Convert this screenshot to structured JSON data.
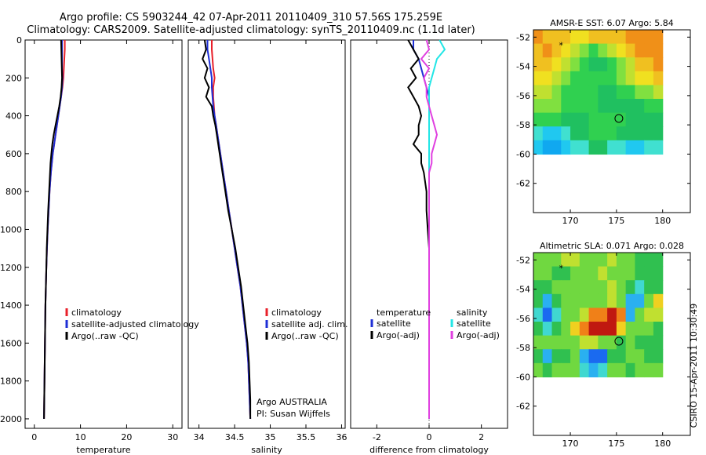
{
  "header": {
    "line1": "Argo profile: CS 5903244_42 07-Apr-2011 20110409_310 57.56S 175.259E",
    "line2": "Climatology: CARS2009. Satellite-adjusted climatology: synTS_20110409.nc (1.1d later)"
  },
  "footer": {
    "stamp": "CSIRO 15-Apr-2011 10:30:49"
  },
  "colors": {
    "red": "#e8202a",
    "blue": "#1f2fd6",
    "black": "#000000",
    "cyan": "#22e6e6",
    "magenta": "#e040e0"
  },
  "chart_data": [
    {
      "type": "line",
      "panel": "temperature",
      "xlabel": "temperature",
      "ylabel": "",
      "xlim": [
        -2,
        32
      ],
      "ylim": [
        2050,
        0
      ],
      "xticks": [
        0,
        10,
        20,
        30
      ],
      "yticks": [
        0,
        200,
        400,
        600,
        800,
        1000,
        1200,
        1400,
        1600,
        1800,
        2000
      ],
      "depth": [
        0,
        50,
        100,
        150,
        200,
        250,
        300,
        350,
        400,
        450,
        500,
        550,
        600,
        650,
        700,
        800,
        900,
        1000,
        1100,
        1200,
        1300,
        1400,
        1500,
        1600,
        1700,
        1800,
        1900,
        2000
      ],
      "series": [
        {
          "name": "climatology",
          "color": "red",
          "values": [
            6.6,
            6.6,
            6.5,
            6.4,
            6.3,
            6.1,
            5.8,
            5.5,
            5.2,
            4.9,
            4.6,
            4.3,
            4.0,
            3.8,
            3.6,
            3.3,
            3.1,
            2.9,
            2.75,
            2.6,
            2.5,
            2.4,
            2.35,
            2.3,
            2.25,
            2.2,
            2.15,
            2.1
          ]
        },
        {
          "name": "satellite-adjusted climatology",
          "color": "blue",
          "values": [
            6.0,
            6.0,
            6.0,
            6.0,
            6.1,
            6.0,
            5.8,
            5.5,
            5.2,
            4.9,
            4.6,
            4.3,
            4.0,
            3.8,
            3.6,
            3.3,
            3.1,
            2.9,
            2.75,
            2.6,
            2.5,
            2.4,
            2.35,
            2.3,
            2.25,
            2.2,
            2.15,
            2.1
          ]
        },
        {
          "name": "Argo(..raw -QC)",
          "color": "black",
          "values": [
            5.8,
            5.85,
            5.9,
            5.95,
            6.0,
            5.9,
            5.7,
            5.4,
            5.0,
            4.6,
            4.2,
            3.9,
            3.7,
            3.5,
            3.4,
            3.2,
            3.0,
            2.85,
            2.7,
            2.6,
            2.5,
            2.4,
            2.35,
            2.3,
            2.25,
            2.2,
            2.15,
            2.1
          ]
        }
      ]
    },
    {
      "type": "line",
      "panel": "salinity",
      "xlabel": "salinity",
      "ylabel": "",
      "xlim": [
        33.85,
        36.05
      ],
      "ylim": [
        2050,
        0
      ],
      "xticks": [
        34,
        34.5,
        35,
        35.5,
        36
      ],
      "xticklabels": [
        "34",
        "34.5",
        "35",
        "35.5",
        "36"
      ],
      "depth": [
        0,
        50,
        100,
        150,
        200,
        250,
        300,
        350,
        400,
        450,
        500,
        550,
        600,
        650,
        700,
        800,
        900,
        1000,
        1100,
        1200,
        1300,
        1400,
        1500,
        1600,
        1700,
        1800,
        1900,
        2000
      ],
      "series": [
        {
          "name": "climatology",
          "color": "red",
          "values": [
            34.18,
            34.18,
            34.19,
            34.2,
            34.22,
            34.2,
            34.2,
            34.21,
            34.22,
            34.24,
            34.26,
            34.28,
            34.3,
            34.32,
            34.34,
            34.38,
            34.42,
            34.46,
            34.5,
            34.54,
            34.58,
            34.61,
            34.64,
            34.67,
            34.69,
            34.7,
            34.71,
            34.72
          ]
        },
        {
          "name": "satellite adj. clim.",
          "color": "blue",
          "values": [
            34.12,
            34.12,
            34.14,
            34.16,
            34.18,
            34.18,
            34.19,
            34.2,
            34.22,
            34.24,
            34.26,
            34.28,
            34.3,
            34.32,
            34.34,
            34.38,
            34.42,
            34.46,
            34.5,
            34.54,
            34.58,
            34.61,
            34.64,
            34.67,
            34.69,
            34.7,
            34.71,
            34.72
          ]
        },
        {
          "name": "Argo(..raw -QC)",
          "color": "black",
          "values": [
            34.08,
            34.1,
            34.05,
            34.12,
            34.08,
            34.14,
            34.1,
            34.18,
            34.2,
            34.23,
            34.25,
            34.27,
            34.29,
            34.31,
            34.33,
            34.37,
            34.41,
            34.46,
            34.51,
            34.55,
            34.59,
            34.62,
            34.65,
            34.68,
            34.7,
            34.71,
            34.72,
            34.72
          ]
        }
      ],
      "annotation": [
        "Argo AUSTRALIA",
        "PI: Susan Wijffels"
      ]
    },
    {
      "type": "line",
      "panel": "difference",
      "xlabel": "difference from climatology",
      "ylabel": "",
      "xlim": [
        -3,
        3
      ],
      "ylim": [
        2050,
        0
      ],
      "xticks": [
        -2,
        0,
        2
      ],
      "legend_headers": [
        "temperature",
        "salinity"
      ],
      "depth": [
        0,
        50,
        100,
        150,
        200,
        250,
        300,
        350,
        400,
        450,
        500,
        550,
        600,
        650,
        700,
        800,
        900,
        1000,
        1100,
        1200,
        1300,
        1400,
        1500,
        1600,
        1700,
        1800,
        1900,
        2000
      ],
      "series": [
        {
          "name": "satellite",
          "group": "temperature",
          "color": "blue",
          "values": [
            -0.6,
            -0.6,
            -0.4,
            -0.3,
            -0.2,
            -0.1,
            0.0,
            0.0,
            0.0,
            0.0,
            0.0,
            0.0,
            0.0,
            0.0,
            0.0,
            0.0,
            0.0,
            0.0,
            0.0,
            0.0,
            0.0,
            0.0,
            0.0,
            0.0,
            0.0,
            0.0,
            0.0,
            0.0
          ]
        },
        {
          "name": "Argo(-adj)",
          "group": "temperature",
          "color": "black",
          "values": [
            -0.8,
            -0.6,
            -0.4,
            -0.7,
            -0.5,
            -0.8,
            -0.6,
            -0.4,
            -0.3,
            -0.4,
            -0.4,
            -0.6,
            -0.3,
            -0.3,
            -0.2,
            -0.1,
            -0.1,
            -0.05,
            0.0,
            0.0,
            0.0,
            0.0,
            0.0,
            0.0,
            0.0,
            0.0,
            0.0,
            0.0
          ]
        },
        {
          "name": "satellite",
          "group": "salinity",
          "color": "cyan",
          "values": [
            0.4,
            0.6,
            0.3,
            0.2,
            0.1,
            0.0,
            0.0,
            0.0,
            0.0,
            0.0,
            0.0,
            0.0,
            0.0,
            0.0,
            0.0,
            0.0,
            0.0,
            0.0,
            0.0,
            0.0,
            0.0,
            0.0,
            0.0,
            0.0,
            0.0,
            0.0,
            0.0,
            0.0
          ]
        },
        {
          "name": "Argo(-adj)",
          "group": "salinity",
          "color": "magenta",
          "values": [
            -0.1,
            0.0,
            -0.3,
            0.0,
            -0.2,
            -0.1,
            -0.1,
            0.0,
            0.1,
            0.2,
            0.3,
            0.2,
            0.1,
            0.1,
            0.0,
            0.0,
            0.0,
            0.0,
            0.0,
            0.0,
            0.0,
            0.0,
            0.0,
            0.0,
            0.0,
            0.0,
            0.0,
            0.0
          ]
        }
      ]
    },
    {
      "type": "heatmap",
      "panel": "sst",
      "title": "AMSR-E SST: 6.07 Argo: 5.84",
      "xlim": [
        166,
        183
      ],
      "ylim": [
        -64,
        -51.5
      ],
      "xticks": [
        170,
        175,
        180
      ],
      "yticks": [
        -52,
        -54,
        -56,
        -58,
        -60,
        -62
      ],
      "grid_extent": {
        "lon": [
          166,
          180
        ],
        "lat": [
          -60,
          -51.5
        ]
      },
      "argo_position": {
        "lon": 175.259,
        "lat": -57.56
      },
      "star": {
        "lon": 169,
        "lat": -52.6
      },
      "colormap": [
        "#10a8f0",
        "#20c8f0",
        "#40e0d0",
        "#20c060",
        "#30d050",
        "#80e040",
        "#c0e030",
        "#f0e020",
        "#f0c020",
        "#f09018"
      ],
      "field": [
        [
          9,
          8,
          8,
          8,
          7,
          7,
          8,
          8,
          8,
          8,
          9,
          9,
          9,
          9
        ],
        [
          8,
          9,
          8,
          7,
          6,
          5,
          4,
          5,
          6,
          7,
          8,
          9,
          9,
          9
        ],
        [
          8,
          8,
          7,
          6,
          5,
          4,
          3,
          3,
          4,
          5,
          6,
          8,
          8,
          9
        ],
        [
          7,
          7,
          6,
          5,
          4,
          4,
          4,
          4,
          4,
          5,
          6,
          7,
          7,
          8
        ],
        [
          6,
          6,
          5,
          4,
          4,
          4,
          4,
          3,
          3,
          4,
          4,
          5,
          5,
          6
        ],
        [
          5,
          5,
          5,
          4,
          4,
          4,
          4,
          3,
          3,
          3,
          3,
          3,
          4,
          4
        ],
        [
          4,
          4,
          4,
          3,
          3,
          3,
          4,
          4,
          4,
          4,
          3,
          3,
          3,
          3
        ],
        [
          2,
          1,
          1,
          2,
          3,
          3,
          4,
          4,
          4,
          3,
          3,
          3,
          3,
          3
        ],
        [
          1,
          0,
          0,
          1,
          2,
          2,
          3,
          3,
          2,
          2,
          1,
          1,
          2,
          2
        ]
      ]
    },
    {
      "type": "heatmap",
      "panel": "sla",
      "title": "Altimetric SLA: 0.071 Argo: 0.028",
      "xlim": [
        166,
        183
      ],
      "ylim": [
        -64,
        -51.5
      ],
      "xticks": [
        170,
        175,
        180
      ],
      "yticks": [
        -52,
        -54,
        -56,
        -58,
        -60,
        -62
      ],
      "grid_extent": {
        "lon": [
          166,
          180
        ],
        "lat": [
          -60,
          -51.5
        ]
      },
      "argo_position": {
        "lon": 175.259,
        "lat": -57.56
      },
      "star": {
        "lon": 169,
        "lat": -52.6
      },
      "colormap": [
        "#1030c0",
        "#1a6af0",
        "#2ab0f0",
        "#40d8d0",
        "#30c050",
        "#70d840",
        "#c0e030",
        "#f0d020",
        "#f08018",
        "#c01810"
      ],
      "field": [
        [
          5,
          5,
          5,
          6,
          6,
          5,
          5,
          5,
          6,
          5,
          5,
          4,
          4,
          4
        ],
        [
          5,
          5,
          4,
          4,
          5,
          5,
          5,
          6,
          5,
          5,
          5,
          4,
          4,
          4
        ],
        [
          4,
          4,
          5,
          5,
          5,
          5,
          5,
          5,
          6,
          5,
          4,
          3,
          4,
          4
        ],
        [
          4,
          2,
          4,
          5,
          5,
          5,
          5,
          5,
          6,
          5,
          2,
          2,
          5,
          7
        ],
        [
          3,
          1,
          3,
          5,
          5,
          6,
          8,
          8,
          9,
          8,
          2,
          5,
          6,
          6
        ],
        [
          4,
          3,
          4,
          5,
          7,
          8,
          9,
          9,
          9,
          7,
          5,
          5,
          5,
          4
        ],
        [
          5,
          5,
          5,
          5,
          5,
          6,
          6,
          5,
          5,
          4,
          5,
          4,
          4,
          4
        ],
        [
          4,
          2,
          4,
          4,
          5,
          2,
          1,
          1,
          4,
          4,
          5,
          5,
          4,
          4
        ],
        [
          5,
          4,
          5,
          5,
          5,
          3,
          2,
          3,
          5,
          5,
          4,
          5,
          5,
          5
        ]
      ]
    }
  ]
}
